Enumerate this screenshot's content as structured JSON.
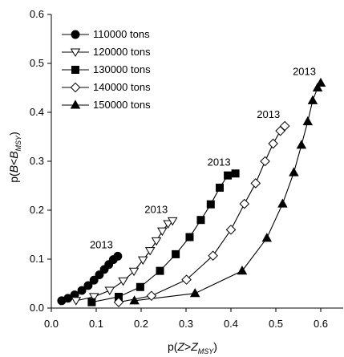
{
  "chart_data": {
    "type": "scatter",
    "xlabel": "p(Z>Z_MSY)",
    "ylabel": "p(B<B_MSY)",
    "xlim": [
      0,
      0.65
    ],
    "ylim": [
      0,
      0.6
    ],
    "x_ticks": [
      "0.0",
      "0.1",
      "0.2",
      "0.3",
      "0.4",
      "0.5",
      "0.6"
    ],
    "y_ticks": [
      "0.0",
      "0.1",
      "0.2",
      "0.3",
      "0.4",
      "0.5",
      "0.6"
    ],
    "legend_position": "top-left",
    "grid": false,
    "series": [
      {
        "name": "110000 tons",
        "marker": "circle-filled",
        "x": [
          0.023,
          0.037,
          0.052,
          0.068,
          0.082,
          0.095,
          0.107,
          0.118,
          0.128,
          0.138,
          0.148
        ],
        "y": [
          0.015,
          0.02,
          0.027,
          0.036,
          0.046,
          0.057,
          0.068,
          0.079,
          0.089,
          0.099,
          0.106
        ],
        "label": "2013"
      },
      {
        "name": "120000 tons",
        "marker": "triangle-down-open",
        "x": [
          0.055,
          0.095,
          0.13,
          0.16,
          0.184,
          0.204,
          0.22,
          0.234,
          0.247,
          0.26,
          0.27
        ],
        "y": [
          0.015,
          0.023,
          0.036,
          0.055,
          0.075,
          0.098,
          0.117,
          0.137,
          0.157,
          0.172,
          0.178
        ],
        "label": "2013"
      },
      {
        "name": "130000 tons",
        "marker": "square-filled",
        "x": [
          0.09,
          0.15,
          0.198,
          0.242,
          0.277,
          0.308,
          0.333,
          0.355,
          0.375,
          0.393,
          0.41
        ],
        "y": [
          0.012,
          0.023,
          0.043,
          0.076,
          0.11,
          0.145,
          0.18,
          0.212,
          0.246,
          0.271,
          0.275
        ],
        "label": "2013"
      },
      {
        "name": "140000 tons",
        "marker": "diamond-open",
        "x": [
          0.15,
          0.223,
          0.301,
          0.36,
          0.4,
          0.43,
          0.455,
          0.476,
          0.494,
          0.51,
          0.52
        ],
        "y": [
          0.012,
          0.025,
          0.058,
          0.107,
          0.16,
          0.213,
          0.255,
          0.3,
          0.336,
          0.362,
          0.372
        ],
        "label": "2013"
      },
      {
        "name": "150000 tons",
        "marker": "triangle-up-filled",
        "x": [
          0.185,
          0.32,
          0.425,
          0.48,
          0.515,
          0.54,
          0.557,
          0.571,
          0.582,
          0.593,
          0.6
        ],
        "y": [
          0.015,
          0.03,
          0.076,
          0.143,
          0.213,
          0.277,
          0.333,
          0.381,
          0.424,
          0.45,
          0.46
        ],
        "label": "2013"
      }
    ]
  }
}
